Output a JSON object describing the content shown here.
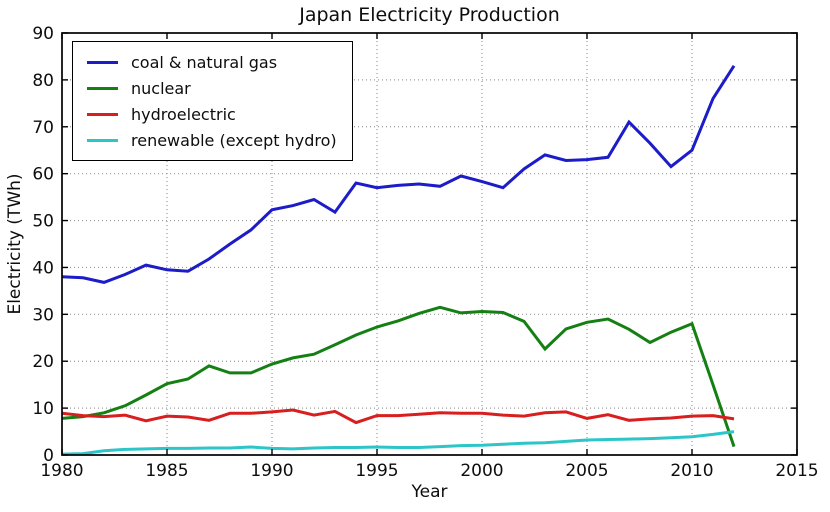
{
  "figure": {
    "background": "#ffffff",
    "grid_color": "#9a9a9a",
    "spine_color": "#000000"
  },
  "chart_data": {
    "type": "line",
    "title": "Japan Electricity Production",
    "xlabel": "Year",
    "ylabel": "Electricity (TWh)",
    "xlim": [
      1980,
      2015
    ],
    "ylim": [
      0,
      90
    ],
    "xticks": [
      1980,
      1985,
      1990,
      1995,
      2000,
      2005,
      2010,
      2015
    ],
    "yticks": [
      0,
      10,
      20,
      30,
      40,
      50,
      60,
      70,
      80,
      90
    ],
    "grid": true,
    "grid_style": "dotted",
    "legend_position": "upper left",
    "line_width": 3,
    "x": [
      1980,
      1981,
      1982,
      1983,
      1984,
      1985,
      1986,
      1987,
      1988,
      1989,
      1990,
      1991,
      1992,
      1993,
      1994,
      1995,
      1996,
      1997,
      1998,
      1999,
      2000,
      2001,
      2002,
      2003,
      2004,
      2005,
      2006,
      2007,
      2008,
      2009,
      2010,
      2011,
      2012
    ],
    "series": [
      {
        "name": "coal & natural gas",
        "key": "coal-natural-gas",
        "color": "#1c1cc8",
        "values": [
          38,
          37.8,
          36.8,
          38.5,
          40.5,
          39.5,
          39.2,
          41.8,
          45,
          48,
          52.3,
          53.2,
          54.5,
          51.8,
          58,
          57,
          57.5,
          57.8,
          57.3,
          59.5,
          58.3,
          57,
          61,
          64,
          62.8,
          63,
          63.5,
          71,
          66.5,
          61.5,
          65,
          76,
          83
        ]
      },
      {
        "name": "nuclear",
        "key": "nuclear",
        "color": "#148014",
        "values": [
          7.8,
          8.2,
          9,
          10.5,
          12.8,
          15.2,
          16.2,
          19,
          17.5,
          17.5,
          19.4,
          20.7,
          21.5,
          23.5,
          25.6,
          27.3,
          28.6,
          30.2,
          31.5,
          30.3,
          30.6,
          30.4,
          28.5,
          22.6,
          26.9,
          28.3,
          29,
          26.8,
          24,
          26.2,
          28,
          15,
          1.8
        ]
      },
      {
        "name": "hydroelectric",
        "key": "hydroelectric",
        "color": "#d81e1e",
        "values": [
          8.9,
          8.4,
          8.2,
          8.5,
          7.3,
          8.3,
          8.1,
          7.4,
          8.9,
          8.9,
          9.2,
          9.6,
          8.5,
          9.3,
          6.9,
          8.4,
          8.4,
          8.7,
          9,
          8.9,
          8.9,
          8.5,
          8.3,
          9,
          9.2,
          7.8,
          8.6,
          7.4,
          7.7,
          7.9,
          8.3,
          8.4,
          7.7
        ]
      },
      {
        "name": "renewable (except hydro)",
        "key": "renewable-except-hydro",
        "color": "#2dc5c8",
        "values": [
          0.2,
          0.3,
          0.9,
          1.2,
          1.3,
          1.4,
          1.4,
          1.5,
          1.5,
          1.7,
          1.4,
          1.3,
          1.5,
          1.6,
          1.6,
          1.7,
          1.6,
          1.6,
          1.8,
          2,
          2.1,
          2.3,
          2.5,
          2.6,
          2.9,
          3.2,
          3.3,
          3.4,
          3.5,
          3.7,
          3.9,
          4.4,
          5
        ]
      }
    ]
  }
}
